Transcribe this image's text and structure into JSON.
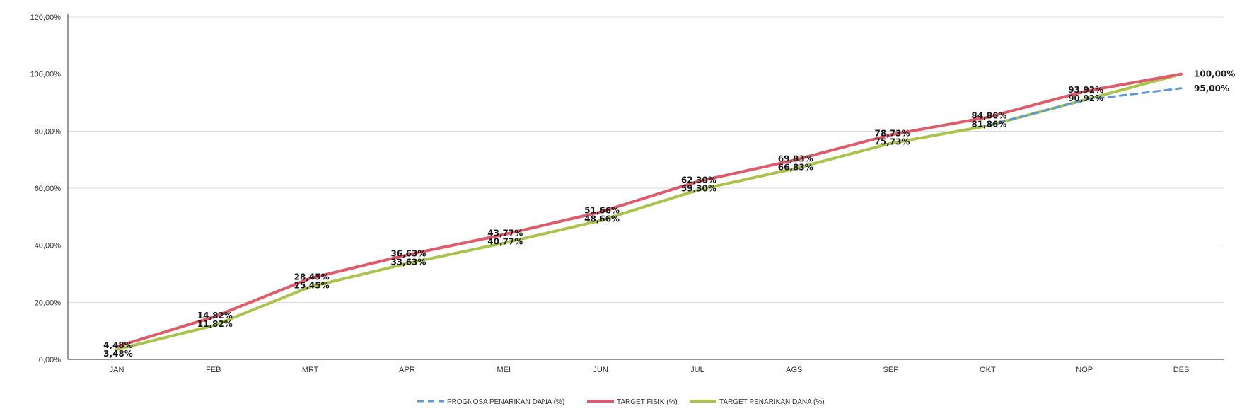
{
  "chart_data": {
    "type": "line",
    "categories": [
      "JAN",
      "FEB",
      "MRT",
      "APR",
      "MEI",
      "JUN",
      "JUL",
      "AGS",
      "SEP",
      "OKT",
      "NOP",
      "DES"
    ],
    "ylim": [
      0,
      120
    ],
    "y_ticks": [
      0,
      20,
      40,
      60,
      80,
      100,
      120
    ],
    "y_tick_labels": [
      "0,00%",
      "20,00%",
      "40,00%",
      "60,00%",
      "80,00%",
      "100,00%",
      "120,00%"
    ],
    "grid": true,
    "legend_position": "bottom",
    "series": [
      {
        "name": "TARGET FISIK (%)",
        "color": "#e05a6a",
        "style": "solid",
        "values": [
          4.48,
          14.82,
          28.45,
          36.63,
          43.77,
          51.66,
          62.3,
          69.83,
          78.73,
          84.86,
          93.92,
          100.0
        ],
        "labels": [
          "4,48%",
          "14,82%",
          "28,45%",
          "36,63%",
          "43,77%",
          "51,66%",
          "62,30%",
          "69,83%",
          "78,73%",
          "84,86%",
          "93,92%",
          "100,00%"
        ]
      },
      {
        "name": "TARGET PENARIKAN DANA (%)",
        "color": "#a9c44a",
        "style": "solid",
        "values": [
          3.48,
          11.82,
          25.45,
          33.63,
          40.77,
          48.66,
          59.3,
          66.83,
          75.73,
          81.86,
          90.92,
          100.0
        ],
        "labels": [
          "3,48%",
          "11,82%",
          "25,45%",
          "33,63%",
          "40,77%",
          "48,66%",
          "59,30%",
          "66,83%",
          "75,73%",
          "81,86%",
          "90,92%",
          ""
        ]
      },
      {
        "name": "PROGNOSA PENARIKAN DANA (%)",
        "color": "#5b9bd5",
        "style": "dashed",
        "values": [
          null,
          null,
          null,
          null,
          null,
          null,
          null,
          null,
          null,
          81.86,
          90.92,
          95.0
        ],
        "labels": [
          "",
          "",
          "",
          "",
          "",
          "",
          "",
          "",
          "",
          "",
          "",
          "95,00%"
        ]
      }
    ]
  }
}
